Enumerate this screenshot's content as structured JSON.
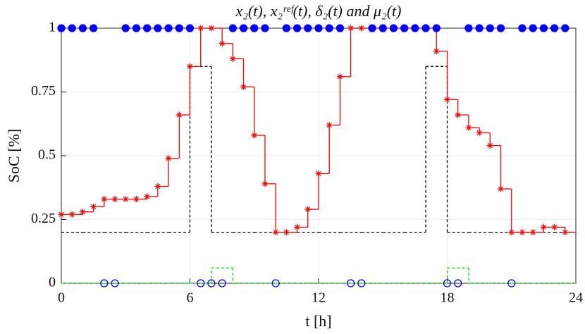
{
  "chart_data": {
    "type": "stairs",
    "title": "x₂(t), x₂ʳᵉᶠ(t), δ₂(t) and μ₂(t)",
    "xlabel": "t [h]",
    "ylabel": "SoC [%]",
    "xlim": [
      0,
      24
    ],
    "ylim": [
      0,
      1
    ],
    "xticks": [
      0,
      6,
      12,
      18,
      24
    ],
    "yticks": [
      0,
      0.25,
      0.5,
      0.75,
      1
    ],
    "grid": true,
    "series": [
      {
        "color": "#000000",
        "dashed": true,
        "marker": "none",
        "x": [
          0,
          1,
          2,
          3,
          4,
          5,
          6,
          7,
          8,
          9,
          10,
          11,
          12,
          13,
          14,
          15,
          16,
          17,
          18,
          19,
          20,
          21,
          22,
          23
        ],
        "values": [
          0.2,
          0.2,
          0.2,
          0.2,
          0.2,
          0.2,
          0.85,
          0.2,
          0.2,
          0.2,
          0.2,
          0.2,
          0.2,
          0.2,
          0.2,
          0.2,
          0.2,
          0.85,
          0.2,
          0.2,
          0.2,
          0.2,
          0.2,
          0.2
        ]
      },
      {
        "color": "#00dd00",
        "dashed": true,
        "marker": "none",
        "x": [
          0,
          1,
          2,
          3,
          4,
          5,
          6,
          7,
          8,
          9,
          10,
          11,
          12,
          13,
          14,
          15,
          16,
          17,
          18,
          19,
          20,
          21,
          22,
          23
        ],
        "values": [
          0,
          0,
          0,
          0,
          0,
          0,
          0,
          0.06,
          0,
          0,
          0,
          0,
          0,
          0,
          0,
          0,
          0,
          0,
          0.06,
          0,
          0,
          0,
          0,
          0
        ]
      },
      {
        "color": "#ff0000",
        "dashed": false,
        "marker": "star",
        "x": [
          0,
          0.5,
          1,
          1.5,
          2,
          2.5,
          3,
          3.5,
          4,
          4.5,
          5,
          5.5,
          6,
          6.5,
          7,
          7.5,
          8,
          8.5,
          9,
          9.5,
          10,
          10.5,
          11,
          11.5,
          12,
          12.5,
          13,
          13.5,
          14,
          14.5,
          15,
          15.5,
          16,
          16.5,
          17,
          17.5,
          18,
          18.5,
          19,
          19.5,
          20,
          20.5,
          21,
          21.5,
          22,
          22.5,
          23,
          23.5
        ],
        "values": [
          0.27,
          0.27,
          0.28,
          0.3,
          0.33,
          0.33,
          0.33,
          0.33,
          0.34,
          0.38,
          0.49,
          0.66,
          0.85,
          1,
          1,
          0.94,
          0.88,
          0.77,
          0.58,
          0.39,
          0.2,
          0.2,
          0.22,
          0.29,
          0.43,
          0.62,
          0.81,
          1,
          1,
          1,
          1,
          1,
          1,
          1,
          1,
          0.91,
          0.72,
          0.66,
          0.61,
          0.59,
          0.54,
          0.37,
          0.2,
          0.2,
          0.2,
          0.22,
          0.22,
          0.2
        ]
      },
      {
        "color": "#0000ff",
        "dashed": false,
        "marker": "circle",
        "line": false,
        "x": [
          0,
          0.5,
          1,
          1.5,
          2,
          2.5,
          3,
          3.5,
          4,
          4.5,
          5,
          5.5,
          6,
          6.5,
          7,
          7.5,
          8,
          8.5,
          9,
          9.5,
          10,
          10.5,
          11,
          11.5,
          12,
          12.5,
          13,
          13.5,
          14,
          14.5,
          15,
          15.5,
          16,
          16.5,
          17,
          17.5,
          18,
          18.5,
          19,
          19.5,
          20,
          20.5,
          21,
          21.5,
          22,
          22.5,
          23,
          23.5
        ],
        "values": [
          1,
          1,
          1,
          1,
          0,
          0,
          1,
          1,
          1,
          1,
          1,
          1,
          1,
          0,
          0,
          0,
          1,
          1,
          1,
          1,
          0,
          1,
          1,
          1,
          1,
          1,
          1,
          0,
          0,
          1,
          1,
          1,
          1,
          1,
          1,
          1,
          0,
          0,
          1,
          1,
          1,
          1,
          0,
          1,
          1,
          1,
          1,
          1
        ]
      }
    ]
  }
}
